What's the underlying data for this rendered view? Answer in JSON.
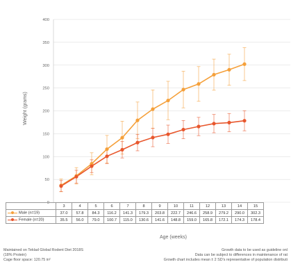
{
  "chart_data": {
    "type": "line",
    "xlabel": "Age (weeks)",
    "ylabel": "Weight (grams)",
    "ylim": [
      0,
      400
    ],
    "yticks": [
      0,
      50,
      100,
      150,
      200,
      250,
      300,
      350,
      400
    ],
    "categories": [
      "3",
      "4",
      "5",
      "6",
      "7",
      "8",
      "9",
      "10",
      "11",
      "12",
      "13",
      "14",
      "15"
    ],
    "grid": true,
    "series": [
      {
        "name": "Male (n=19)",
        "color": "#f5a03a",
        "values": [
          37.0,
          57.8,
          84.3,
          116.2,
          141.3,
          179.3,
          203.8,
          222.7,
          246.6,
          258.9,
          279.2,
          290.0,
          302.3
        ],
        "value_labels": [
          "37.0",
          "57.8",
          "84.3",
          "116.2",
          "141.3",
          "179.3",
          "203.8",
          "222.7",
          "246.6",
          "258.9",
          "279.2",
          "290.0",
          "302.3"
        ],
        "error": [
          14,
          18,
          24,
          30,
          36,
          40,
          42,
          42,
          40,
          38,
          34,
          34,
          36
        ]
      },
      {
        "name": "Female (n=20)",
        "color": "#e8572d",
        "values": [
          35.5,
          56.0,
          79.0,
          100.7,
          115.0,
          130.6,
          141.6,
          148.8,
          159.0,
          165.8,
          172.1,
          174.3,
          178.4
        ],
        "value_labels": [
          "35.5",
          "56.0",
          "79.0",
          "100.7",
          "115.0",
          "130.6",
          "141.6",
          "148.8",
          "159.0",
          "165.8",
          "172.1",
          "174.3",
          "178.4"
        ],
        "error": [
          12,
          14,
          14,
          16,
          18,
          18,
          20,
          20,
          20,
          20,
          20,
          20,
          22
        ]
      }
    ]
  },
  "notes": {
    "left": [
      "Maintained on Teklad Global Rodent Diet 2018S",
      "(18% Protein)",
      "Cage floor space: 120.75 in²"
    ],
    "right": [
      "Growth data to be used as guideline onl",
      "Data can be subject to differences in maintenance of rat",
      "Growth chart includes mean ± 2 SD's representative of population distributi"
    ]
  }
}
